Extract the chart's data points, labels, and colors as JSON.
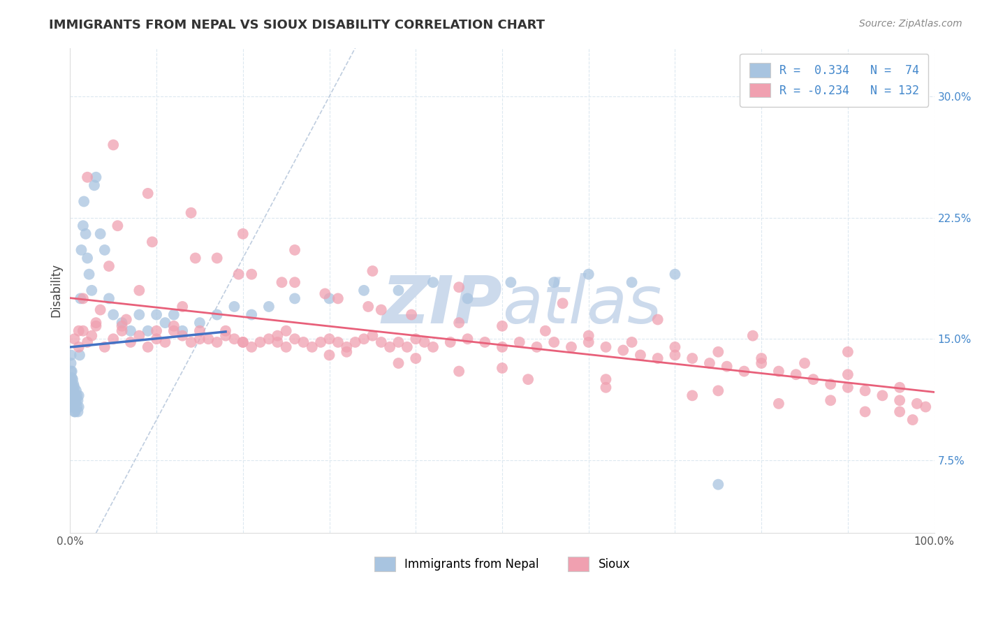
{
  "title": "IMMIGRANTS FROM NEPAL VS SIOUX DISABILITY CORRELATION CHART",
  "source_text": "Source: ZipAtlas.com",
  "ylabel": "Disability",
  "xlim": [
    0.0,
    1.0
  ],
  "ylim": [
    0.03,
    0.33
  ],
  "xticks": [
    0.0,
    0.1,
    0.2,
    0.3,
    0.4,
    0.5,
    0.6,
    0.7,
    0.8,
    0.9,
    1.0
  ],
  "xticklabels_outer": [
    "0.0%",
    "",
    "",
    "",
    "",
    "",
    "",
    "",
    "",
    "",
    "100.0%"
  ],
  "yticks": [
    0.075,
    0.15,
    0.225,
    0.3
  ],
  "yticklabels": [
    "7.5%",
    "15.0%",
    "22.5%",
    "30.0%"
  ],
  "nepal_R": 0.334,
  "nepal_N": 74,
  "sioux_R": -0.234,
  "sioux_N": 132,
  "nepal_color": "#a8c4e0",
  "sioux_color": "#f0a0b0",
  "nepal_line_color": "#4472c4",
  "sioux_line_color": "#e8607a",
  "diagonal_color": "#b8c8dc",
  "watermark_color": "#ccdaec",
  "background_color": "#ffffff",
  "grid_color": "#dce8f0",
  "nepal_scatter_x": [
    0.001,
    0.001,
    0.001,
    0.001,
    0.001,
    0.002,
    0.002,
    0.002,
    0.002,
    0.002,
    0.002,
    0.003,
    0.003,
    0.003,
    0.003,
    0.004,
    0.004,
    0.004,
    0.004,
    0.005,
    0.005,
    0.005,
    0.005,
    0.006,
    0.006,
    0.006,
    0.007,
    0.007,
    0.008,
    0.008,
    0.009,
    0.009,
    0.01,
    0.01,
    0.011,
    0.012,
    0.013,
    0.015,
    0.016,
    0.018,
    0.02,
    0.022,
    0.025,
    0.028,
    0.03,
    0.035,
    0.04,
    0.045,
    0.05,
    0.06,
    0.07,
    0.08,
    0.09,
    0.1,
    0.11,
    0.12,
    0.13,
    0.15,
    0.17,
    0.19,
    0.21,
    0.23,
    0.26,
    0.3,
    0.34,
    0.38,
    0.42,
    0.46,
    0.51,
    0.56,
    0.6,
    0.65,
    0.7,
    0.75
  ],
  "nepal_scatter_y": [
    0.12,
    0.125,
    0.13,
    0.135,
    0.14,
    0.108,
    0.112,
    0.118,
    0.122,
    0.126,
    0.13,
    0.11,
    0.115,
    0.12,
    0.125,
    0.108,
    0.112,
    0.118,
    0.122,
    0.105,
    0.11,
    0.115,
    0.12,
    0.105,
    0.11,
    0.115,
    0.112,
    0.118,
    0.108,
    0.115,
    0.105,
    0.112,
    0.108,
    0.115,
    0.14,
    0.175,
    0.205,
    0.22,
    0.235,
    0.215,
    0.2,
    0.19,
    0.18,
    0.245,
    0.25,
    0.215,
    0.205,
    0.175,
    0.165,
    0.16,
    0.155,
    0.165,
    0.155,
    0.165,
    0.16,
    0.165,
    0.155,
    0.16,
    0.165,
    0.17,
    0.165,
    0.17,
    0.175,
    0.175,
    0.18,
    0.18,
    0.185,
    0.175,
    0.185,
    0.185,
    0.19,
    0.185,
    0.19,
    0.06
  ],
  "sioux_scatter_x": [
    0.005,
    0.01,
    0.015,
    0.02,
    0.025,
    0.03,
    0.04,
    0.05,
    0.06,
    0.07,
    0.08,
    0.09,
    0.1,
    0.11,
    0.12,
    0.13,
    0.14,
    0.15,
    0.16,
    0.17,
    0.18,
    0.19,
    0.2,
    0.21,
    0.22,
    0.23,
    0.24,
    0.25,
    0.26,
    0.27,
    0.28,
    0.29,
    0.3,
    0.31,
    0.32,
    0.33,
    0.34,
    0.35,
    0.36,
    0.37,
    0.38,
    0.39,
    0.4,
    0.41,
    0.42,
    0.44,
    0.46,
    0.48,
    0.5,
    0.52,
    0.54,
    0.56,
    0.58,
    0.6,
    0.62,
    0.64,
    0.66,
    0.68,
    0.7,
    0.72,
    0.74,
    0.76,
    0.78,
    0.8,
    0.82,
    0.84,
    0.86,
    0.88,
    0.9,
    0.92,
    0.94,
    0.96,
    0.98,
    0.99,
    0.045,
    0.08,
    0.13,
    0.17,
    0.21,
    0.26,
    0.31,
    0.36,
    0.45,
    0.55,
    0.65,
    0.75,
    0.85,
    0.02,
    0.055,
    0.095,
    0.145,
    0.195,
    0.245,
    0.295,
    0.345,
    0.395,
    0.5,
    0.6,
    0.7,
    0.8,
    0.9,
    0.96,
    0.01,
    0.03,
    0.06,
    0.1,
    0.15,
    0.2,
    0.25,
    0.3,
    0.38,
    0.45,
    0.53,
    0.62,
    0.72,
    0.82,
    0.92,
    0.975,
    0.015,
    0.035,
    0.065,
    0.12,
    0.18,
    0.24,
    0.32,
    0.4,
    0.5,
    0.62,
    0.75,
    0.88,
    0.96,
    0.05,
    0.09,
    0.14,
    0.2,
    0.26,
    0.35,
    0.45,
    0.57,
    0.68,
    0.79,
    0.9
  ],
  "sioux_scatter_y": [
    0.15,
    0.145,
    0.155,
    0.148,
    0.152,
    0.158,
    0.145,
    0.15,
    0.155,
    0.148,
    0.152,
    0.145,
    0.15,
    0.148,
    0.155,
    0.152,
    0.148,
    0.155,
    0.15,
    0.148,
    0.155,
    0.15,
    0.148,
    0.145,
    0.148,
    0.15,
    0.152,
    0.155,
    0.15,
    0.148,
    0.145,
    0.148,
    0.15,
    0.148,
    0.145,
    0.148,
    0.15,
    0.152,
    0.148,
    0.145,
    0.148,
    0.145,
    0.15,
    0.148,
    0.145,
    0.148,
    0.15,
    0.148,
    0.145,
    0.148,
    0.145,
    0.148,
    0.145,
    0.148,
    0.145,
    0.143,
    0.14,
    0.138,
    0.14,
    0.138,
    0.135,
    0.133,
    0.13,
    0.135,
    0.13,
    0.128,
    0.125,
    0.122,
    0.12,
    0.118,
    0.115,
    0.112,
    0.11,
    0.108,
    0.195,
    0.18,
    0.17,
    0.2,
    0.19,
    0.185,
    0.175,
    0.168,
    0.16,
    0.155,
    0.148,
    0.142,
    0.135,
    0.25,
    0.22,
    0.21,
    0.2,
    0.19,
    0.185,
    0.178,
    0.17,
    0.165,
    0.158,
    0.152,
    0.145,
    0.138,
    0.128,
    0.12,
    0.155,
    0.16,
    0.158,
    0.155,
    0.15,
    0.148,
    0.145,
    0.14,
    0.135,
    0.13,
    0.125,
    0.12,
    0.115,
    0.11,
    0.105,
    0.1,
    0.175,
    0.168,
    0.162,
    0.158,
    0.152,
    0.148,
    0.142,
    0.138,
    0.132,
    0.125,
    0.118,
    0.112,
    0.105,
    0.27,
    0.24,
    0.228,
    0.215,
    0.205,
    0.192,
    0.182,
    0.172,
    0.162,
    0.152,
    0.142
  ]
}
